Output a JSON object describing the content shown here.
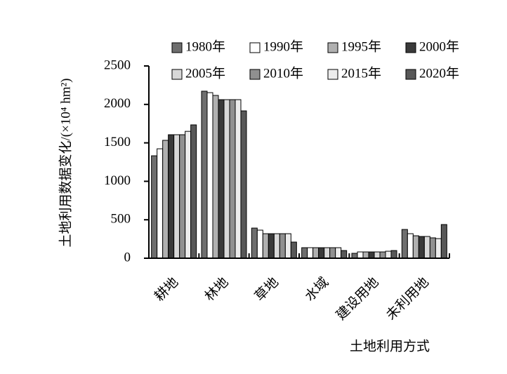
{
  "chart_data": {
    "type": "bar",
    "y_label": "土地利用数据变化/(×10⁴ hm²)",
    "x_label": "土地利用方式",
    "categories": [
      "耕地",
      "林地",
      "草地",
      "水域",
      "建设用地",
      "未利用地"
    ],
    "series": [
      {
        "name": "1980年",
        "color": "#6e6e6e",
        "values": [
          1332,
          2172,
          392,
          137,
          64,
          374
        ]
      },
      {
        "name": "1990年",
        "color": "#ffffff",
        "values": [
          1423,
          2153,
          365,
          137,
          82,
          319
        ]
      },
      {
        "name": "1995年",
        "color": "#b0b0b0",
        "values": [
          1533,
          2117,
          319,
          137,
          82,
          292
        ]
      },
      {
        "name": "2000年",
        "color": "#3a3a3a",
        "values": [
          1606,
          2062,
          319,
          137,
          82,
          283
        ]
      },
      {
        "name": "2005年",
        "color": "#d8d8d8",
        "values": [
          1606,
          2062,
          319,
          137,
          82,
          283
        ]
      },
      {
        "name": "2010年",
        "color": "#909090",
        "values": [
          1606,
          2062,
          319,
          137,
          82,
          265
        ]
      },
      {
        "name": "2015年",
        "color": "#ececec",
        "values": [
          1650,
          2062,
          319,
          137,
          91,
          255
        ]
      },
      {
        "name": "2020年",
        "color": "#585858",
        "values": [
          1734,
          1916,
          210,
          100,
          100,
          438
        ]
      }
    ],
    "ylim": [
      0,
      2500
    ],
    "yticks": [
      0,
      500,
      1000,
      1500,
      2000,
      2500
    ]
  }
}
